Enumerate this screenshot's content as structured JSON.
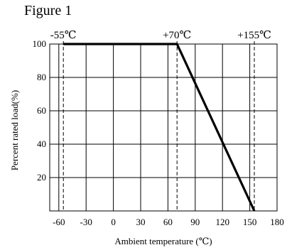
{
  "title": "Figure 1",
  "chart_data": {
    "type": "line",
    "xlabel": "Ambient temperature (℃)",
    "ylabel": "Percent rated load(%)",
    "xlim": [
      -70,
      180
    ],
    "ylim": [
      0,
      100
    ],
    "x_ticks": [
      -60,
      -30,
      0,
      30,
      60,
      90,
      120,
      150,
      180
    ],
    "y_ticks": [
      20,
      40,
      60,
      80,
      100
    ],
    "grid": true,
    "series": [
      {
        "x": [
          -55,
          70,
          155
        ],
        "y": [
          100,
          100,
          0
        ]
      }
    ],
    "reference_lines": [
      {
        "x": -55,
        "label": "-55℃"
      },
      {
        "x": 70,
        "label": "+70℃"
      },
      {
        "x": 155,
        "label": "+155℃"
      }
    ]
  }
}
